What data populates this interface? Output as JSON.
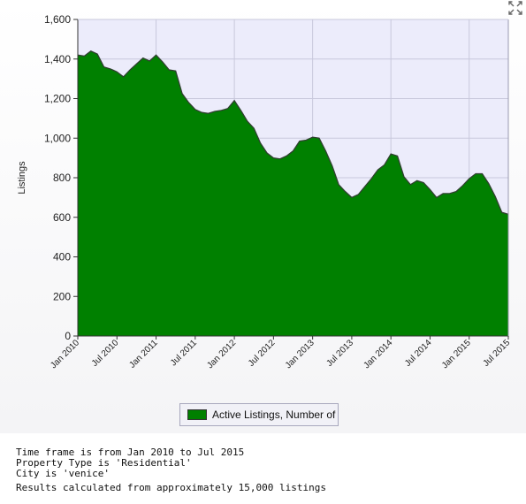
{
  "chart_data": {
    "type": "area",
    "ylabel": "Listings",
    "ylim": [
      0,
      1600
    ],
    "yticks": [
      0,
      200,
      400,
      600,
      800,
      1000,
      1200,
      1400,
      1600
    ],
    "ytick_labels": [
      "0",
      "200",
      "400",
      "600",
      "800",
      "1,000",
      "1,200",
      "1,400",
      "1,600"
    ],
    "xtick_labels": [
      "Jan 2010",
      "Jul 2010",
      "Jan 2011",
      "Jul 2011",
      "Jan 2012",
      "Jul 2012",
      "Jan 2013",
      "Jul 2013",
      "Jan 2014",
      "Jul 2014",
      "Jan 2015",
      "Jul 2015"
    ],
    "x_start": "Jan 2010",
    "x_end": "Jul 2015",
    "grid": true,
    "legend_position": "bottom-center",
    "series": [
      {
        "name": "Active Listings, Number of",
        "color": "#008000",
        "values": [
          1420,
          1415,
          1440,
          1425,
          1360,
          1350,
          1335,
          1310,
          1345,
          1375,
          1405,
          1390,
          1420,
          1385,
          1345,
          1340,
          1225,
          1180,
          1145,
          1130,
          1125,
          1135,
          1140,
          1150,
          1190,
          1140,
          1085,
          1050,
          975,
          925,
          900,
          895,
          910,
          935,
          985,
          990,
          1005,
          1000,
          935,
          860,
          765,
          730,
          700,
          715,
          755,
          795,
          840,
          865,
          920,
          910,
          805,
          765,
          785,
          775,
          740,
          700,
          720,
          720,
          730,
          760,
          795,
          820,
          820,
          770,
          705,
          625,
          615
        ]
      }
    ]
  },
  "legend": {
    "label": "Active Listings, Number of"
  },
  "notes": {
    "line1": "Time frame is from Jan 2010 to Jul 2015",
    "line2": "Property Type is 'Residential'",
    "line3": "City is 'venice'",
    "line4": "Results calculated from approximately 15,000 listings"
  },
  "icons": {
    "expand": "expand-arrows-icon"
  }
}
